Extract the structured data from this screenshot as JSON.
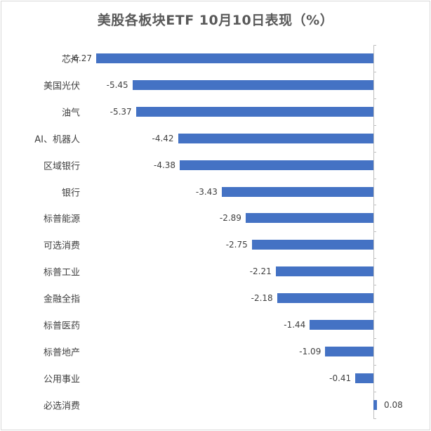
{
  "chart_data": {
    "type": "bar",
    "orientation": "horizontal",
    "title": "美股各板块ETF 10月10日表现（%）",
    "xlabel": "",
    "ylabel": "",
    "categories": [
      "芯片",
      "美国光伏",
      "油气",
      "AI、机器人",
      "区域银行",
      "银行",
      "标普能源",
      "可选消费",
      "标普工业",
      "金融全指",
      "标普医药",
      "标普地产",
      "公用事业",
      "必选消费"
    ],
    "values": [
      -6.27,
      -5.45,
      -5.37,
      -4.42,
      -4.38,
      -3.43,
      -2.89,
      -2.75,
      -2.21,
      -2.18,
      -1.44,
      -1.09,
      -0.41,
      0.08
    ],
    "value_labels": [
      "-6.27",
      "-5.45",
      "-5.37",
      "-4.42",
      "-4.38",
      "-3.43",
      "-2.89",
      "-2.75",
      "-2.21",
      "-2.18",
      "-1.44",
      "-1.09",
      "-0.41",
      "0.08"
    ],
    "xlim": [
      -6.27,
      0.08
    ],
    "grid": false,
    "legend": null,
    "colors": {
      "bar": "#4472c4",
      "axis": "#bfbfbf",
      "text": "#404040",
      "title": "#595959"
    }
  }
}
